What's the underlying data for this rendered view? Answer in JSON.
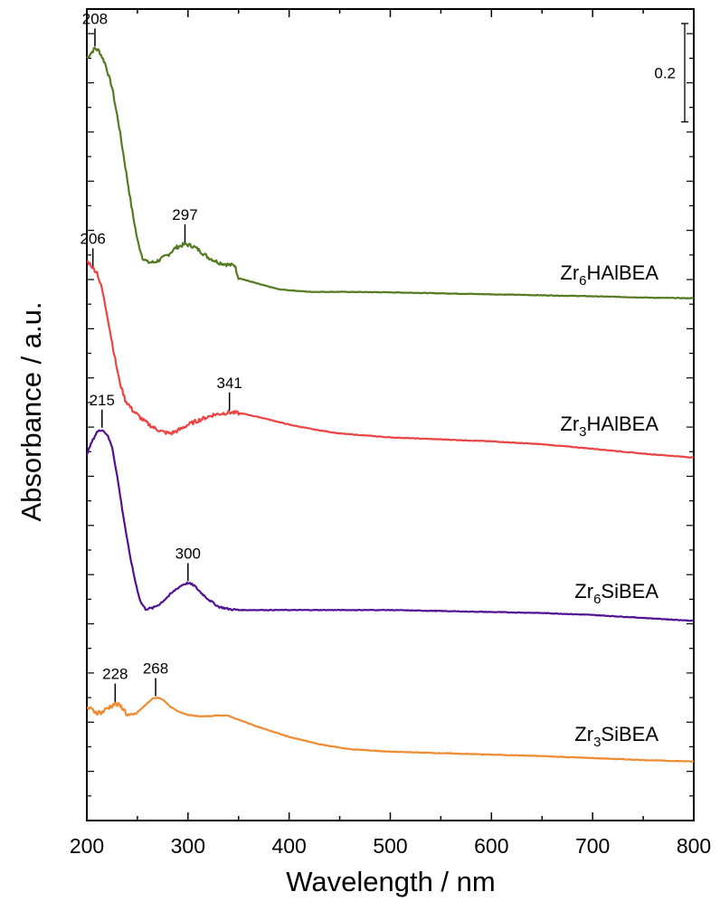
{
  "chart_data": {
    "type": "line",
    "xlabel": "Wavelength / nm",
    "ylabel": "Absorbance / a.u.",
    "xlim": [
      200,
      800
    ],
    "xticks": [
      200,
      300,
      400,
      500,
      600,
      700,
      800
    ],
    "y_tick_labels": "none",
    "grid": false,
    "legend": "none (inline labels at right)",
    "scale_bar": {
      "label": "0.2",
      "value": 0.2
    },
    "series": [
      {
        "name": "Zr6HAlBEA",
        "label_main": "Zr",
        "label_sub": "6",
        "label_rest": "HAlBEA",
        "color": "#557a1f",
        "noise": 0.004,
        "noise_until": 350,
        "points": [
          [
            200,
            1.55
          ],
          [
            205,
            1.563
          ],
          [
            208,
            1.57
          ],
          [
            212,
            1.565
          ],
          [
            218,
            1.54
          ],
          [
            225,
            1.49
          ],
          [
            232,
            1.41
          ],
          [
            238,
            1.33
          ],
          [
            244,
            1.25
          ],
          [
            250,
            1.18
          ],
          [
            255,
            1.145
          ],
          [
            260,
            1.135
          ],
          [
            266,
            1.135
          ],
          [
            272,
            1.14
          ],
          [
            280,
            1.15
          ],
          [
            288,
            1.165
          ],
          [
            297,
            1.172
          ],
          [
            305,
            1.168
          ],
          [
            312,
            1.158
          ],
          [
            320,
            1.145
          ],
          [
            330,
            1.135
          ],
          [
            340,
            1.13
          ],
          [
            347,
            1.128
          ],
          [
            349,
            1.105
          ],
          [
            352,
            1.102
          ],
          [
            370,
            1.091
          ],
          [
            390,
            1.08
          ],
          [
            420,
            1.075
          ],
          [
            450,
            1.075
          ],
          [
            500,
            1.074
          ],
          [
            550,
            1.072
          ],
          [
            600,
            1.07
          ],
          [
            650,
            1.068
          ],
          [
            700,
            1.066
          ],
          [
            760,
            1.063
          ],
          [
            800,
            1.062
          ]
        ]
      },
      {
        "name": "Zr3HAlBEA",
        "label_main": "Zr",
        "label_sub": "3",
        "label_rest": "HAlBEA",
        "color": "#ec4343",
        "noise": 0.004,
        "noise_until": 350,
        "points": [
          [
            200,
            1.138
          ],
          [
            204,
            1.13
          ],
          [
            206,
            1.123
          ],
          [
            210,
            1.115
          ],
          [
            215,
            1.08
          ],
          [
            220,
            1.03
          ],
          [
            226,
            0.96
          ],
          [
            232,
            0.895
          ],
          [
            238,
            0.855
          ],
          [
            245,
            0.835
          ],
          [
            255,
            0.815
          ],
          [
            265,
            0.8
          ],
          [
            275,
            0.79
          ],
          [
            283,
            0.787
          ],
          [
            292,
            0.795
          ],
          [
            300,
            0.805
          ],
          [
            312,
            0.815
          ],
          [
            325,
            0.825
          ],
          [
            341,
            0.83
          ],
          [
            355,
            0.827
          ],
          [
            375,
            0.818
          ],
          [
            400,
            0.805
          ],
          [
            425,
            0.795
          ],
          [
            450,
            0.787
          ],
          [
            500,
            0.779
          ],
          [
            550,
            0.775
          ],
          [
            600,
            0.771
          ],
          [
            650,
            0.765
          ],
          [
            700,
            0.756
          ],
          [
            750,
            0.746
          ],
          [
            800,
            0.738
          ]
        ]
      },
      {
        "name": "Zr6SiBEA",
        "label_main": "Zr",
        "label_sub": "6",
        "label_rest": "SiBEA",
        "color": "#521094",
        "noise": 0.002,
        "noise_until": 350,
        "points": [
          [
            200,
            0.745
          ],
          [
            205,
            0.77
          ],
          [
            210,
            0.79
          ],
          [
            215,
            0.795
          ],
          [
            220,
            0.785
          ],
          [
            225,
            0.76
          ],
          [
            230,
            0.7
          ],
          [
            236,
            0.62
          ],
          [
            242,
            0.545
          ],
          [
            248,
            0.485
          ],
          [
            253,
            0.445
          ],
          [
            258,
            0.43
          ],
          [
            265,
            0.432
          ],
          [
            272,
            0.44
          ],
          [
            280,
            0.455
          ],
          [
            288,
            0.47
          ],
          [
            295,
            0.48
          ],
          [
            300,
            0.483
          ],
          [
            306,
            0.478
          ],
          [
            312,
            0.465
          ],
          [
            320,
            0.45
          ],
          [
            330,
            0.435
          ],
          [
            340,
            0.43
          ],
          [
            350,
            0.428
          ],
          [
            400,
            0.428
          ],
          [
            450,
            0.428
          ],
          [
            500,
            0.428
          ],
          [
            550,
            0.426
          ],
          [
            600,
            0.424
          ],
          [
            650,
            0.422
          ],
          [
            700,
            0.418
          ],
          [
            750,
            0.412
          ],
          [
            800,
            0.406
          ]
        ]
      },
      {
        "name": "Zr3SiBEA",
        "label_main": "Zr",
        "label_sub": "3",
        "label_rest": "SiBEA",
        "color": "#ef8b30",
        "noise": 0.005,
        "noise_until": 250,
        "points": [
          [
            200,
            0.23
          ],
          [
            205,
            0.225
          ],
          [
            210,
            0.22
          ],
          [
            215,
            0.22
          ],
          [
            220,
            0.228
          ],
          [
            228,
            0.238
          ],
          [
            235,
            0.23
          ],
          [
            240,
            0.215
          ],
          [
            245,
            0.212
          ],
          [
            250,
            0.22
          ],
          [
            258,
            0.235
          ],
          [
            265,
            0.248
          ],
          [
            270,
            0.25
          ],
          [
            276,
            0.245
          ],
          [
            282,
            0.232
          ],
          [
            290,
            0.222
          ],
          [
            300,
            0.215
          ],
          [
            310,
            0.212
          ],
          [
            320,
            0.212
          ],
          [
            330,
            0.214
          ],
          [
            340,
            0.213
          ],
          [
            350,
            0.205
          ],
          [
            370,
            0.19
          ],
          [
            400,
            0.17
          ],
          [
            430,
            0.155
          ],
          [
            460,
            0.145
          ],
          [
            500,
            0.14
          ],
          [
            550,
            0.137
          ],
          [
            600,
            0.134
          ],
          [
            650,
            0.131
          ],
          [
            700,
            0.127
          ],
          [
            750,
            0.123
          ],
          [
            800,
            0.12
          ]
        ]
      }
    ],
    "peak_annotations": [
      {
        "series": 0,
        "x": 208,
        "label": "208"
      },
      {
        "series": 0,
        "x": 297,
        "label": "297"
      },
      {
        "series": 1,
        "x": 206,
        "label": "206"
      },
      {
        "series": 1,
        "x": 341,
        "label": "341"
      },
      {
        "series": 2,
        "x": 215,
        "label": "215"
      },
      {
        "series": 2,
        "x": 300,
        "label": "300"
      },
      {
        "series": 3,
        "x": 228,
        "label": "228"
      },
      {
        "series": 3,
        "x": 268,
        "label": "268"
      }
    ]
  }
}
